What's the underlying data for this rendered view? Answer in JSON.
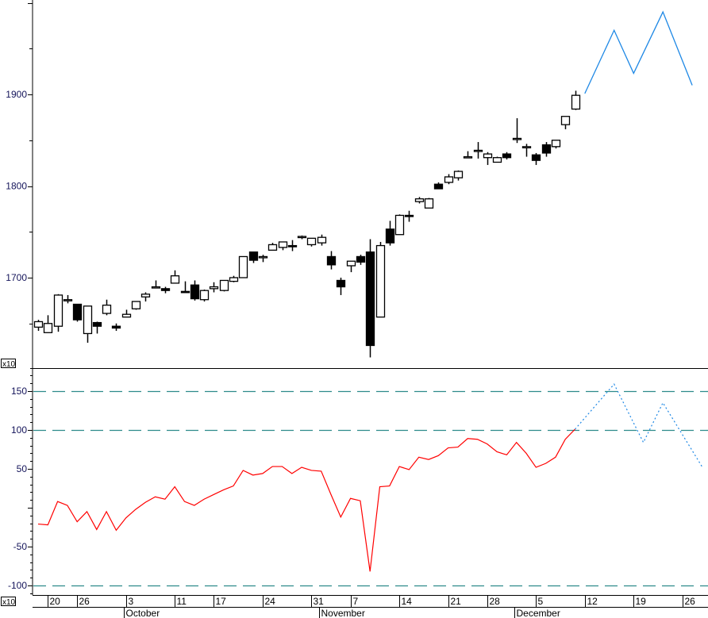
{
  "chart_data": [
    {
      "type": "candlestick",
      "panel": "price",
      "scale_label": "x10",
      "x_unit": "trading-day index",
      "ylim": [
        1600,
        2000
      ],
      "yticks": [
        1700,
        1800,
        1900
      ],
      "candles": [
        {
          "i": 1,
          "o": 1646,
          "h": 1654,
          "l": 1642,
          "c": 1652
        },
        {
          "i": 2,
          "o": 1640,
          "h": 1659,
          "l": 1640,
          "c": 1650
        },
        {
          "i": 3,
          "o": 1647,
          "h": 1682,
          "l": 1641,
          "c": 1681
        },
        {
          "i": 4,
          "o": 1676,
          "h": 1681,
          "l": 1672,
          "c": 1676
        },
        {
          "i": 5,
          "o": 1671,
          "h": 1671,
          "l": 1652,
          "c": 1654
        },
        {
          "i": 6,
          "o": 1639,
          "h": 1669,
          "l": 1629,
          "c": 1669
        },
        {
          "i": 7,
          "o": 1651,
          "h": 1652,
          "l": 1639,
          "c": 1647
        },
        {
          "i": 8,
          "o": 1661,
          "h": 1676,
          "l": 1659,
          "c": 1670
        },
        {
          "i": 9,
          "o": 1647,
          "h": 1650,
          "l": 1642,
          "c": 1645
        },
        {
          "i": 10,
          "o": 1657,
          "h": 1665,
          "l": 1657,
          "c": 1660
        },
        {
          "i": 11,
          "o": 1666,
          "h": 1674,
          "l": 1665,
          "c": 1674
        },
        {
          "i": 12,
          "o": 1679,
          "h": 1684,
          "l": 1674,
          "c": 1682
        },
        {
          "i": 13,
          "o": 1690,
          "h": 1697,
          "l": 1690,
          "c": 1690
        },
        {
          "i": 14,
          "o": 1688,
          "h": 1690,
          "l": 1683,
          "c": 1686
        },
        {
          "i": 15,
          "o": 1694,
          "h": 1708,
          "l": 1694,
          "c": 1702
        },
        {
          "i": 16,
          "o": 1685,
          "h": 1696,
          "l": 1684,
          "c": 1684
        },
        {
          "i": 17,
          "o": 1692,
          "h": 1697,
          "l": 1675,
          "c": 1677
        },
        {
          "i": 18,
          "o": 1676,
          "h": 1687,
          "l": 1674,
          "c": 1686
        },
        {
          "i": 19,
          "o": 1688,
          "h": 1695,
          "l": 1684,
          "c": 1690
        },
        {
          "i": 20,
          "o": 1686,
          "h": 1697,
          "l": 1685,
          "c": 1697
        },
        {
          "i": 21,
          "o": 1696,
          "h": 1702,
          "l": 1695,
          "c": 1700
        },
        {
          "i": 22,
          "o": 1700,
          "h": 1723,
          "l": 1700,
          "c": 1723
        },
        {
          "i": 23,
          "o": 1728,
          "h": 1728,
          "l": 1716,
          "c": 1719
        },
        {
          "i": 24,
          "o": 1722,
          "h": 1725,
          "l": 1717,
          "c": 1723
        },
        {
          "i": 25,
          "o": 1730,
          "h": 1738,
          "l": 1730,
          "c": 1736
        },
        {
          "i": 26,
          "o": 1733,
          "h": 1739,
          "l": 1730,
          "c": 1739
        },
        {
          "i": 27,
          "o": 1735,
          "h": 1741,
          "l": 1729,
          "c": 1734
        },
        {
          "i": 28,
          "o": 1745,
          "h": 1746,
          "l": 1742,
          "c": 1745
        },
        {
          "i": 29,
          "o": 1736,
          "h": 1743,
          "l": 1734,
          "c": 1743
        },
        {
          "i": 30,
          "o": 1738,
          "h": 1747,
          "l": 1735,
          "c": 1744
        },
        {
          "i": 31,
          "o": 1723,
          "h": 1729,
          "l": 1709,
          "c": 1714
        },
        {
          "i": 32,
          "o": 1697,
          "h": 1700,
          "l": 1681,
          "c": 1690
        },
        {
          "i": 33,
          "o": 1713,
          "h": 1718,
          "l": 1706,
          "c": 1718
        },
        {
          "i": 34,
          "o": 1723,
          "h": 1725,
          "l": 1714,
          "c": 1717
        },
        {
          "i": 35,
          "o": 1728,
          "h": 1742,
          "l": 1613,
          "c": 1626
        },
        {
          "i": 36,
          "o": 1657,
          "h": 1739,
          "l": 1657,
          "c": 1735
        },
        {
          "i": 37,
          "o": 1753,
          "h": 1762,
          "l": 1735,
          "c": 1738
        },
        {
          "i": 38,
          "o": 1747,
          "h": 1769,
          "l": 1747,
          "c": 1768
        },
        {
          "i": 39,
          "o": 1768,
          "h": 1773,
          "l": 1761,
          "c": 1767
        },
        {
          "i": 40,
          "o": 1783,
          "h": 1788,
          "l": 1781,
          "c": 1786
        },
        {
          "i": 41,
          "o": 1776,
          "h": 1787,
          "l": 1776,
          "c": 1786
        },
        {
          "i": 42,
          "o": 1802,
          "h": 1804,
          "l": 1797,
          "c": 1797
        },
        {
          "i": 43,
          "o": 1804,
          "h": 1813,
          "l": 1802,
          "c": 1810
        },
        {
          "i": 44,
          "o": 1809,
          "h": 1817,
          "l": 1806,
          "c": 1816
        },
        {
          "i": 45,
          "o": 1832,
          "h": 1838,
          "l": 1831,
          "c": 1832
        },
        {
          "i": 46,
          "o": 1839,
          "h": 1848,
          "l": 1830,
          "c": 1839
        },
        {
          "i": 47,
          "o": 1831,
          "h": 1837,
          "l": 1823,
          "c": 1835
        },
        {
          "i": 48,
          "o": 1826,
          "h": 1832,
          "l": 1826,
          "c": 1831
        },
        {
          "i": 49,
          "o": 1835,
          "h": 1837,
          "l": 1829,
          "c": 1831
        },
        {
          "i": 50,
          "o": 1852,
          "h": 1874,
          "l": 1847,
          "c": 1852
        },
        {
          "i": 51,
          "o": 1843,
          "h": 1846,
          "l": 1832,
          "c": 1843
        },
        {
          "i": 52,
          "o": 1834,
          "h": 1836,
          "l": 1823,
          "c": 1828
        },
        {
          "i": 53,
          "o": 1845,
          "h": 1848,
          "l": 1832,
          "c": 1836
        },
        {
          "i": 54,
          "o": 1843,
          "h": 1850,
          "l": 1841,
          "c": 1850
        },
        {
          "i": 55,
          "o": 1867,
          "h": 1876,
          "l": 1862,
          "c": 1876
        },
        {
          "i": 56,
          "o": 1884,
          "h": 1904,
          "l": 1883,
          "c": 1899
        }
      ],
      "projection": {
        "color": "#1e88e5",
        "points": [
          {
            "i": 57,
            "v": 1901
          },
          {
            "i": 60,
            "v": 1970
          },
          {
            "i": 62,
            "v": 1923
          },
          {
            "i": 65,
            "v": 1990
          },
          {
            "i": 68,
            "v": 1910
          }
        ]
      }
    },
    {
      "type": "line",
      "panel": "indicator",
      "scale_label": "x10",
      "ylim": [
        -110,
        180
      ],
      "yticks": [
        150,
        100,
        50,
        0,
        -50,
        -100
      ],
      "ytick_labels": [
        "150",
        "100",
        "50",
        "",
        "-50",
        "-100"
      ],
      "reference_lines": [
        150,
        100,
        -100
      ],
      "reference_color": "#2e8b8b",
      "series": [
        {
          "color": "#ff0000",
          "style": "solid",
          "points": [
            {
              "i": 1,
              "v": -21
            },
            {
              "i": 2,
              "v": -22
            },
            {
              "i": 3,
              "v": 8
            },
            {
              "i": 4,
              "v": 3
            },
            {
              "i": 5,
              "v": -18
            },
            {
              "i": 6,
              "v": -5
            },
            {
              "i": 7,
              "v": -28
            },
            {
              "i": 8,
              "v": -5
            },
            {
              "i": 9,
              "v": -29
            },
            {
              "i": 10,
              "v": -13
            },
            {
              "i": 11,
              "v": -2
            },
            {
              "i": 12,
              "v": 7
            },
            {
              "i": 13,
              "v": 14
            },
            {
              "i": 14,
              "v": 11
            },
            {
              "i": 15,
              "v": 27
            },
            {
              "i": 16,
              "v": 8
            },
            {
              "i": 17,
              "v": 3
            },
            {
              "i": 18,
              "v": 11
            },
            {
              "i": 19,
              "v": 17
            },
            {
              "i": 20,
              "v": 23
            },
            {
              "i": 21,
              "v": 28
            },
            {
              "i": 22,
              "v": 48
            },
            {
              "i": 23,
              "v": 42
            },
            {
              "i": 24,
              "v": 44
            },
            {
              "i": 25,
              "v": 53
            },
            {
              "i": 26,
              "v": 53
            },
            {
              "i": 27,
              "v": 44
            },
            {
              "i": 28,
              "v": 52
            },
            {
              "i": 29,
              "v": 48
            },
            {
              "i": 30,
              "v": 47
            },
            {
              "i": 31,
              "v": 17
            },
            {
              "i": 32,
              "v": -12
            },
            {
              "i": 33,
              "v": 12
            },
            {
              "i": 34,
              "v": 9
            },
            {
              "i": 35,
              "v": -82
            },
            {
              "i": 36,
              "v": 27
            },
            {
              "i": 37,
              "v": 28
            },
            {
              "i": 38,
              "v": 53
            },
            {
              "i": 39,
              "v": 49
            },
            {
              "i": 40,
              "v": 65
            },
            {
              "i": 41,
              "v": 62
            },
            {
              "i": 42,
              "v": 67
            },
            {
              "i": 43,
              "v": 77
            },
            {
              "i": 44,
              "v": 78
            },
            {
              "i": 45,
              "v": 89
            },
            {
              "i": 46,
              "v": 88
            },
            {
              "i": 47,
              "v": 82
            },
            {
              "i": 48,
              "v": 72
            },
            {
              "i": 49,
              "v": 68
            },
            {
              "i": 50,
              "v": 84
            },
            {
              "i": 51,
              "v": 70
            },
            {
              "i": 52,
              "v": 52
            },
            {
              "i": 53,
              "v": 57
            },
            {
              "i": 54,
              "v": 65
            },
            {
              "i": 55,
              "v": 88
            },
            {
              "i": 56,
              "v": 101
            }
          ]
        },
        {
          "color": "#1e88e5",
          "style": "dotted",
          "points": [
            {
              "i": 56,
              "v": 101
            },
            {
              "i": 60,
              "v": 159
            },
            {
              "i": 63,
              "v": 84
            },
            {
              "i": 65,
              "v": 135
            },
            {
              "i": 69,
              "v": 53
            }
          ]
        }
      ]
    }
  ],
  "x_axis": {
    "day_ticks": [
      {
        "i": 2,
        "label": "20"
      },
      {
        "i": 5,
        "label": "26"
      },
      {
        "i": 10,
        "label": "3"
      },
      {
        "i": 15,
        "label": "11"
      },
      {
        "i": 19,
        "label": "17"
      },
      {
        "i": 24,
        "label": "24"
      },
      {
        "i": 29,
        "label": "31"
      },
      {
        "i": 33,
        "label": "7"
      },
      {
        "i": 38,
        "label": "14"
      },
      {
        "i": 43,
        "label": "21"
      },
      {
        "i": 47,
        "label": "28"
      },
      {
        "i": 52,
        "label": "5"
      },
      {
        "i": 57,
        "label": "12"
      },
      {
        "i": 62,
        "label": "19"
      },
      {
        "i": 67,
        "label": "26"
      }
    ],
    "month_ticks": [
      {
        "i": 10,
        "label": "October"
      },
      {
        "i": 30,
        "label": "November"
      },
      {
        "i": 50,
        "label": "December"
      }
    ]
  }
}
